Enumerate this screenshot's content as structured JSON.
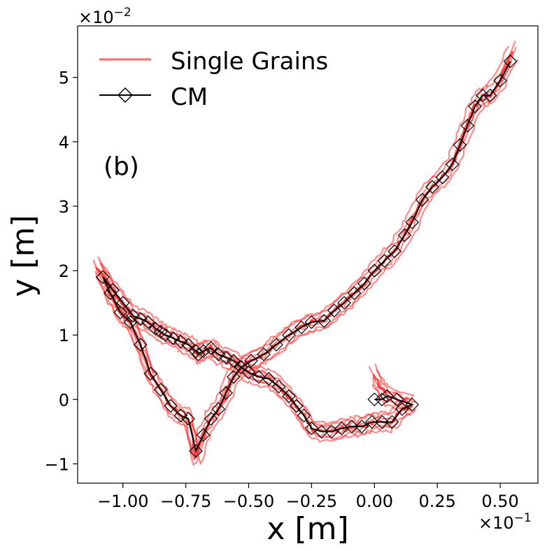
{
  "chart_data": {
    "type": "line",
    "title": "",
    "panel_label": "(b)",
    "xlabel": "x [m]",
    "ylabel": "y [m]",
    "x_multiplier": "×10",
    "x_multiplier_exp": "−1",
    "y_multiplier": "×10",
    "y_multiplier_exp": "−2",
    "xlim": [
      -1.18,
      0.65
    ],
    "ylim": [
      -1.3,
      5.8
    ],
    "xticks": [
      -1.0,
      -0.75,
      -0.5,
      -0.25,
      0.0,
      0.25,
      0.5
    ],
    "xtick_labels": [
      "−1.00",
      "−0.75",
      "−0.50",
      "−0.25",
      "0.00",
      "0.25",
      "0.50"
    ],
    "yticks": [
      -1,
      0,
      1,
      2,
      3,
      4,
      5
    ],
    "ytick_labels": [
      "−1",
      "0",
      "1",
      "2",
      "3",
      "4",
      "5"
    ],
    "grid": false,
    "legend_position": "top-left",
    "legend": [
      "Single Grains",
      "CM"
    ],
    "colors": {
      "single_grains": "#ff2a2a",
      "cm": "#000000"
    },
    "series": [
      {
        "name": "CM",
        "x": [
          0.54,
          0.5,
          0.46,
          0.43,
          0.4,
          0.37,
          0.34,
          0.31,
          0.27,
          0.23,
          0.19,
          0.15,
          0.12,
          0.08,
          0.04,
          0.0,
          -0.04,
          -0.08,
          -0.12,
          -0.16,
          -0.2,
          -0.25,
          -0.29,
          -0.34,
          -0.39,
          -0.44,
          -0.49,
          -0.53,
          -0.56,
          -0.59,
          -0.62,
          -0.65,
          -0.68,
          -0.71,
          -0.74,
          -0.77,
          -0.81,
          -0.85,
          -0.89,
          -0.93,
          -0.97,
          -1.01,
          -1.05,
          -1.08,
          -1.04,
          -1.0,
          -0.96,
          -0.93,
          -0.9,
          -0.87,
          -0.85,
          -0.83,
          -0.8,
          -0.77,
          -0.74,
          -0.71,
          -0.7,
          -0.68,
          -0.65,
          -0.62,
          -0.59,
          -0.56,
          -0.53,
          -0.5,
          -0.46,
          -0.42,
          -0.38,
          -0.34,
          -0.31,
          -0.28,
          -0.25,
          -0.21,
          -0.17,
          -0.13,
          -0.09,
          -0.05,
          -0.01,
          0.03,
          0.07,
          0.11,
          0.15,
          0.09,
          0.05,
          0.03,
          0.0
        ],
        "y": [
          5.25,
          4.95,
          4.72,
          4.72,
          4.55,
          4.25,
          3.95,
          3.65,
          3.45,
          3.3,
          3.1,
          2.75,
          2.55,
          2.3,
          2.15,
          2.0,
          1.8,
          1.65,
          1.5,
          1.38,
          1.22,
          1.2,
          1.12,
          1.0,
          0.85,
          0.7,
          0.6,
          0.5,
          0.35,
          0.1,
          -0.15,
          -0.3,
          -0.55,
          -0.8,
          -0.3,
          -0.25,
          -0.1,
          0.15,
          0.4,
          0.85,
          1.2,
          1.35,
          1.65,
          1.9,
          1.7,
          1.5,
          1.3,
          1.25,
          1.2,
          1.1,
          1.05,
          1.0,
          0.95,
          0.9,
          0.85,
          0.75,
          0.7,
          0.75,
          0.8,
          0.7,
          0.65,
          0.6,
          0.5,
          0.42,
          0.35,
          0.32,
          0.2,
          0.05,
          -0.1,
          -0.25,
          -0.45,
          -0.5,
          -0.5,
          -0.45,
          -0.42,
          -0.42,
          -0.35,
          -0.35,
          -0.35,
          -0.15,
          -0.08,
          0.0,
          0.05,
          0.0,
          0.0
        ]
      },
      {
        "name": "Single Grains",
        "x": [
          0.55,
          0.5,
          0.46,
          0.43,
          0.4,
          0.37,
          0.34,
          0.31,
          0.27,
          0.23,
          0.19,
          0.15,
          0.12,
          0.08,
          0.04,
          0.0,
          -0.04,
          -0.08,
          -0.12,
          -0.16,
          -0.2,
          -0.25,
          -0.29,
          -0.34,
          -0.39,
          -0.44,
          -0.49,
          -0.53,
          -0.56,
          -0.59,
          -0.62,
          -0.65,
          -0.68,
          -0.71,
          -0.74,
          -0.77,
          -0.81,
          -0.85,
          -0.89,
          -0.93,
          -0.97,
          -1.01,
          -1.05,
          -1.1,
          -1.04,
          -1.0,
          -0.96,
          -0.93,
          -0.9,
          -0.87,
          -0.85,
          -0.83,
          -0.8,
          -0.77,
          -0.74,
          -0.71,
          -0.7,
          -0.68,
          -0.65,
          -0.62,
          -0.59,
          -0.56,
          -0.53,
          -0.5,
          -0.46,
          -0.42,
          -0.38,
          -0.34,
          -0.31,
          -0.28,
          -0.25,
          -0.21,
          -0.17,
          -0.13,
          -0.09,
          -0.05,
          -0.01,
          0.03,
          0.07,
          0.11,
          0.15,
          0.09,
          0.05,
          0.02,
          0.0
        ],
        "y": [
          5.4,
          4.95,
          4.72,
          4.72,
          4.55,
          4.25,
          3.95,
          3.65,
          3.45,
          3.3,
          3.1,
          2.75,
          2.55,
          2.3,
          2.15,
          2.0,
          1.8,
          1.65,
          1.5,
          1.38,
          1.22,
          1.2,
          1.12,
          1.0,
          0.85,
          0.7,
          0.6,
          0.5,
          0.35,
          0.1,
          -0.15,
          -0.3,
          -0.55,
          -0.9,
          -0.3,
          -0.25,
          -0.1,
          0.15,
          0.4,
          0.85,
          1.2,
          1.35,
          1.65,
          2.05,
          1.7,
          1.5,
          1.3,
          1.25,
          1.2,
          1.1,
          1.05,
          1.0,
          0.95,
          0.9,
          0.85,
          0.75,
          0.7,
          0.75,
          0.8,
          0.7,
          0.65,
          0.6,
          0.5,
          0.42,
          0.35,
          0.32,
          0.2,
          0.05,
          -0.1,
          -0.25,
          -0.45,
          -0.5,
          -0.5,
          -0.45,
          -0.42,
          -0.42,
          -0.35,
          -0.35,
          -0.35,
          -0.15,
          -0.08,
          0.0,
          0.05,
          0.2,
          0.4
        ]
      }
    ]
  }
}
